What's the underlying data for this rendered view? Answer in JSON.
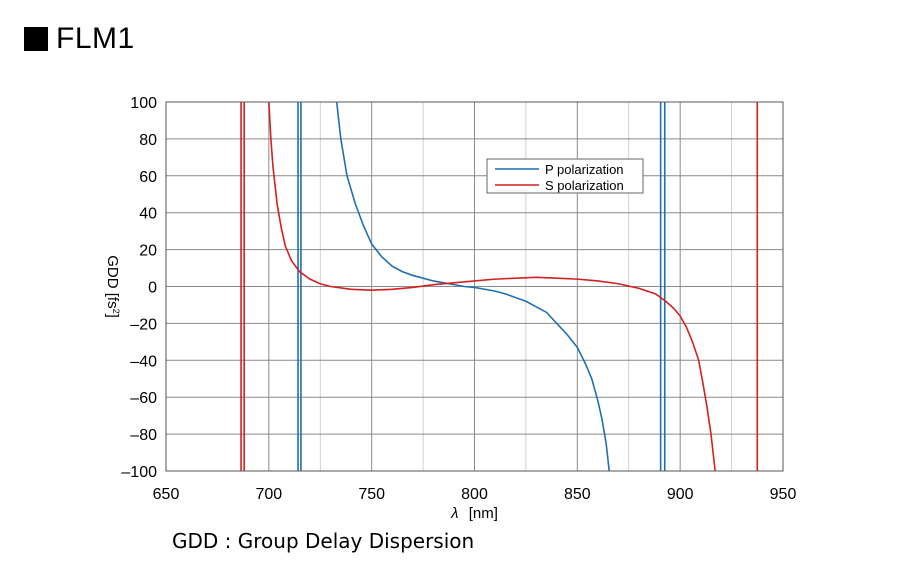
{
  "header": {
    "title": "FLM1"
  },
  "footer": {
    "caption": "GDD : Group Delay Dispersion"
  },
  "chart_data": {
    "type": "line",
    "xlabel_sym": "λ",
    "xlabel_unit": "[nm]",
    "ylabel_main": "GDD [fs",
    "ylabel_sup": "2",
    "ylabel_end": "]",
    "xlim": [
      650,
      950
    ],
    "ylim": [
      -100,
      100
    ],
    "xticks": [
      650,
      700,
      750,
      800,
      850,
      900,
      950
    ],
    "yticks": [
      100,
      80,
      60,
      40,
      20,
      0,
      -20,
      -40,
      -60,
      -80,
      -100
    ],
    "ytick_labels": [
      "100",
      "80",
      "60",
      "40",
      "20",
      "0",
      "–20",
      "–40",
      "–60",
      "–80",
      "–100"
    ],
    "grid": true,
    "legend_position": "top-right",
    "series": [
      {
        "name": "P polarization",
        "color": "#1f6fb4",
        "segments": [
          [
            [
              714.2,
              -100
            ],
            [
              714.2,
              100
            ]
          ],
          [
            [
              715.6,
              -100
            ],
            [
              715.6,
              100
            ]
          ],
          [
            [
              733,
              100
            ],
            [
              735,
              80
            ],
            [
              738,
              60
            ],
            [
              742,
              45
            ],
            [
              746,
              33
            ],
            [
              750,
              23
            ],
            [
              755,
              16
            ],
            [
              760,
              11
            ],
            [
              765,
              8
            ],
            [
              770,
              6
            ],
            [
              775,
              4.5
            ],
            [
              780,
              3
            ],
            [
              785,
              2
            ],
            [
              790,
              1
            ],
            [
              795,
              0
            ],
            [
              800,
              -0.5
            ],
            [
              805,
              -1.5
            ],
            [
              810,
              -2.5
            ],
            [
              815,
              -4
            ],
            [
              820,
              -6
            ],
            [
              825,
              -8
            ],
            [
              830,
              -11
            ],
            [
              835,
              -14
            ],
            [
              840,
              -20
            ],
            [
              845,
              -26
            ],
            [
              850,
              -33
            ],
            [
              854,
              -42
            ],
            [
              857,
              -50
            ],
            [
              860,
              -62
            ],
            [
              862,
              -72
            ],
            [
              864,
              -85
            ],
            [
              865.5,
              -100
            ]
          ],
          [
            [
              890.5,
              -100
            ],
            [
              890.5,
              100
            ]
          ],
          [
            [
              892.5,
              -100
            ],
            [
              892.5,
              100
            ]
          ]
        ]
      },
      {
        "name": "S polarization",
        "color": "#d42020",
        "segments": [
          [
            [
              686.5,
              -100
            ],
            [
              686.5,
              100
            ]
          ],
          [
            [
              688,
              -100
            ],
            [
              688,
              100
            ]
          ],
          [
            [
              700,
              100
            ],
            [
              701,
              80
            ],
            [
              702,
              65
            ],
            [
              704,
              45
            ],
            [
              706,
              32
            ],
            [
              708,
              22
            ],
            [
              711,
              14
            ],
            [
              715,
              8
            ],
            [
              720,
              4
            ],
            [
              725,
              1.5
            ],
            [
              730,
              0
            ],
            [
              740,
              -1.5
            ],
            [
              750,
              -2
            ],
            [
              760,
              -1.5
            ],
            [
              770,
              -0.5
            ],
            [
              780,
              1
            ],
            [
              790,
              2
            ],
            [
              800,
              3
            ],
            [
              810,
              4
            ],
            [
              820,
              4.5
            ],
            [
              830,
              5
            ],
            [
              840,
              4.5
            ],
            [
              850,
              4
            ],
            [
              860,
              3
            ],
            [
              870,
              1.5
            ],
            [
              880,
              -1
            ],
            [
              888,
              -4
            ],
            [
              893,
              -8
            ],
            [
              897,
              -12
            ],
            [
              900,
              -16
            ],
            [
              903,
              -22
            ],
            [
              906,
              -30
            ],
            [
              909,
              -40
            ],
            [
              911,
              -52
            ],
            [
              913,
              -65
            ],
            [
              915,
              -80
            ],
            [
              916,
              -90
            ],
            [
              917,
              -100
            ]
          ],
          [
            [
              937.5,
              -100
            ],
            [
              937.5,
              100
            ]
          ]
        ]
      }
    ]
  }
}
